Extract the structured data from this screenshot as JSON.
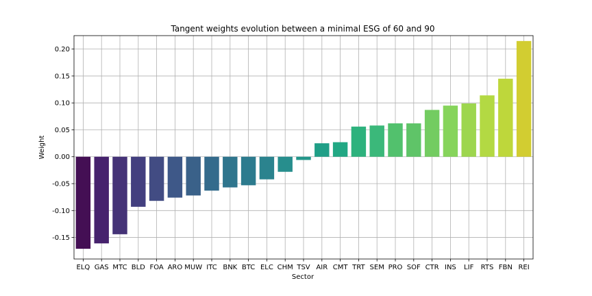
{
  "chart_data": {
    "type": "bar",
    "title": "Tangent weights evolution between a minimal ESG of 60 and 90",
    "xlabel": "Sector",
    "ylabel": "Weight",
    "categories": [
      "ELQ",
      "GAS",
      "MTC",
      "BLD",
      "FOA",
      "ARO",
      "MUW",
      "ITC",
      "BNK",
      "BTC",
      "ELC",
      "CHM",
      "TSV",
      "AIR",
      "CMT",
      "TRT",
      "SEM",
      "PRO",
      "SOF",
      "CTR",
      "INS",
      "LIF",
      "RTS",
      "FBN",
      "REI"
    ],
    "values": [
      -0.171,
      -0.161,
      -0.144,
      -0.093,
      -0.082,
      -0.076,
      -0.072,
      -0.063,
      -0.057,
      -0.053,
      -0.042,
      -0.028,
      -0.006,
      0.025,
      0.027,
      0.056,
      0.058,
      0.062,
      0.062,
      0.087,
      0.095,
      0.099,
      0.114,
      0.145,
      0.215
    ],
    "colors": [
      "#440f54",
      "#46226d",
      "#453377",
      "#433f7f",
      "#424c83",
      "#3e5888",
      "#3a6189",
      "#346b8c",
      "#2f758d",
      "#2d7b8e",
      "#2b838e",
      "#278e8d",
      "#23968a",
      "#209f87",
      "#22a884",
      "#2db27d",
      "#3bb87a",
      "#52c16d",
      "#5fc468",
      "#73cc61",
      "#86d45b",
      "#9dd64e",
      "#b3d943",
      "#bed73b",
      "#d2cd31"
    ],
    "yticks": [
      "-0.15",
      "-0.10",
      "-0.05",
      "0.00",
      "0.05",
      "0.10",
      "0.15",
      "0.20"
    ],
    "ylim": [
      -0.19,
      0.225
    ],
    "grid": true,
    "legend": "none"
  }
}
